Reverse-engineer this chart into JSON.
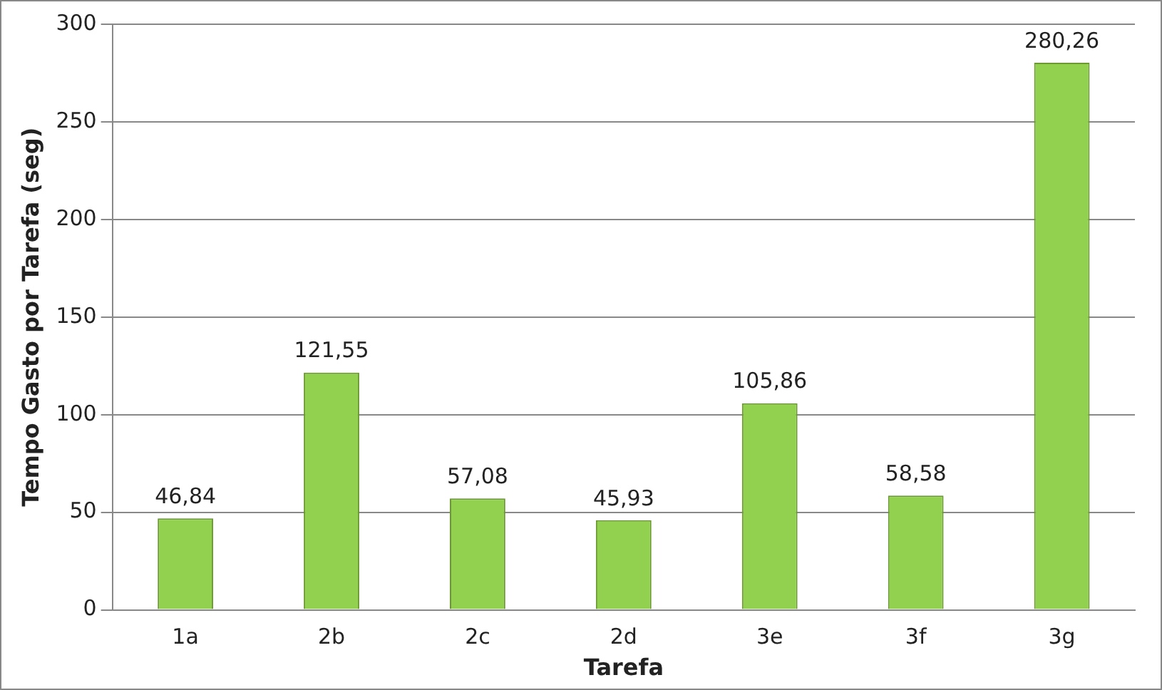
{
  "chart_data": {
    "type": "bar",
    "xlabel": "Tarefa",
    "ylabel": "Tempo Gasto por Tarefa (seg)",
    "categories": [
      "1a",
      "2b",
      "2c",
      "2d",
      "3e",
      "3f",
      "3g"
    ],
    "values": [
      46.84,
      121.55,
      57.08,
      45.93,
      105.86,
      58.58,
      280.26
    ],
    "value_labels": [
      "46,84",
      "121,55",
      "57,08",
      "45,93",
      "105,86",
      "58,58",
      "280,26"
    ],
    "color": "#92d050",
    "ylim": [
      0,
      300
    ],
    "yticks": [
      0,
      50,
      100,
      150,
      200,
      250,
      300
    ],
    "grid": "y",
    "legend": false
  }
}
